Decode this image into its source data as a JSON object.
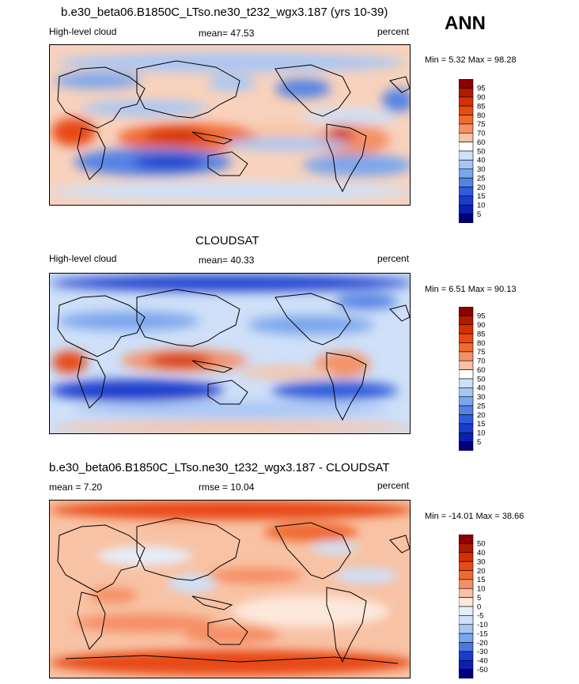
{
  "header": {
    "season": "ANN"
  },
  "chart_data": [
    {
      "type": "heatmap",
      "title": "b.e30_beta06.B1850C_LTso.ne30_t232_wgx3.187 (yrs 10-39)",
      "left_label": "High-level cloud",
      "center_label": "mean=  47.53",
      "units": "percent",
      "stats": "Min =   5.32 Max =  98.28",
      "min": 5.32,
      "max": 98.28,
      "mean": 47.53,
      "colorbar_levels": [
        "95",
        "90",
        "85",
        "80",
        "75",
        "70",
        "60",
        "50",
        "40",
        "30",
        "25",
        "20",
        "15",
        "10",
        "5"
      ],
      "colors": [
        "#8b0000",
        "#b01a00",
        "#d63000",
        "#e84a14",
        "#f06a30",
        "#f59066",
        "#f8c2a4",
        "#ffffff",
        "#cfe0f8",
        "#a8c6f4",
        "#7aa6ec",
        "#5482e4",
        "#2f5cda",
        "#1a3ccc",
        "#0a20b0",
        "#00007a"
      ]
    },
    {
      "type": "heatmap",
      "title": "CLOUDSAT",
      "left_label": "High-level cloud",
      "center_label": "mean=  40.33",
      "units": "percent",
      "stats": "Min =   6.51 Max =  90.13",
      "min": 6.51,
      "max": 90.13,
      "mean": 40.33,
      "colorbar_levels": [
        "95",
        "90",
        "85",
        "80",
        "75",
        "70",
        "60",
        "50",
        "40",
        "30",
        "25",
        "20",
        "15",
        "10",
        "5"
      ],
      "colors": [
        "#8b0000",
        "#b01a00",
        "#d63000",
        "#e84a14",
        "#f06a30",
        "#f59066",
        "#f8c2a4",
        "#ffffff",
        "#cfe0f8",
        "#a8c6f4",
        "#7aa6ec",
        "#5482e4",
        "#2f5cda",
        "#1a3ccc",
        "#0a20b0",
        "#00007a"
      ]
    },
    {
      "type": "heatmap",
      "title": "b.e30_beta06.B1850C_LTso.ne30_t232_wgx3.187 - CLOUDSAT",
      "left_label": "mean =   7.20",
      "center_label": "rmse =  10.04",
      "units": "percent",
      "stats": "Min = -14.01 Max =  38.66",
      "min": -14.01,
      "max": 38.66,
      "mean": 7.2,
      "rmse": 10.04,
      "colorbar_levels": [
        "50",
        "40",
        "30",
        "20",
        "15",
        "10",
        "5",
        "0",
        "-5",
        "-10",
        "-15",
        "-20",
        "-30",
        "-40",
        "-50"
      ],
      "colors": [
        "#8b0000",
        "#b01a00",
        "#d63000",
        "#e84a14",
        "#f06a30",
        "#f59066",
        "#f8c2a4",
        "#fde8dc",
        "#e6eefa",
        "#cfe0f8",
        "#a8c6f4",
        "#7aa6ec",
        "#4a78e0",
        "#1a3ccc",
        "#0a20b0",
        "#00007a"
      ]
    }
  ]
}
